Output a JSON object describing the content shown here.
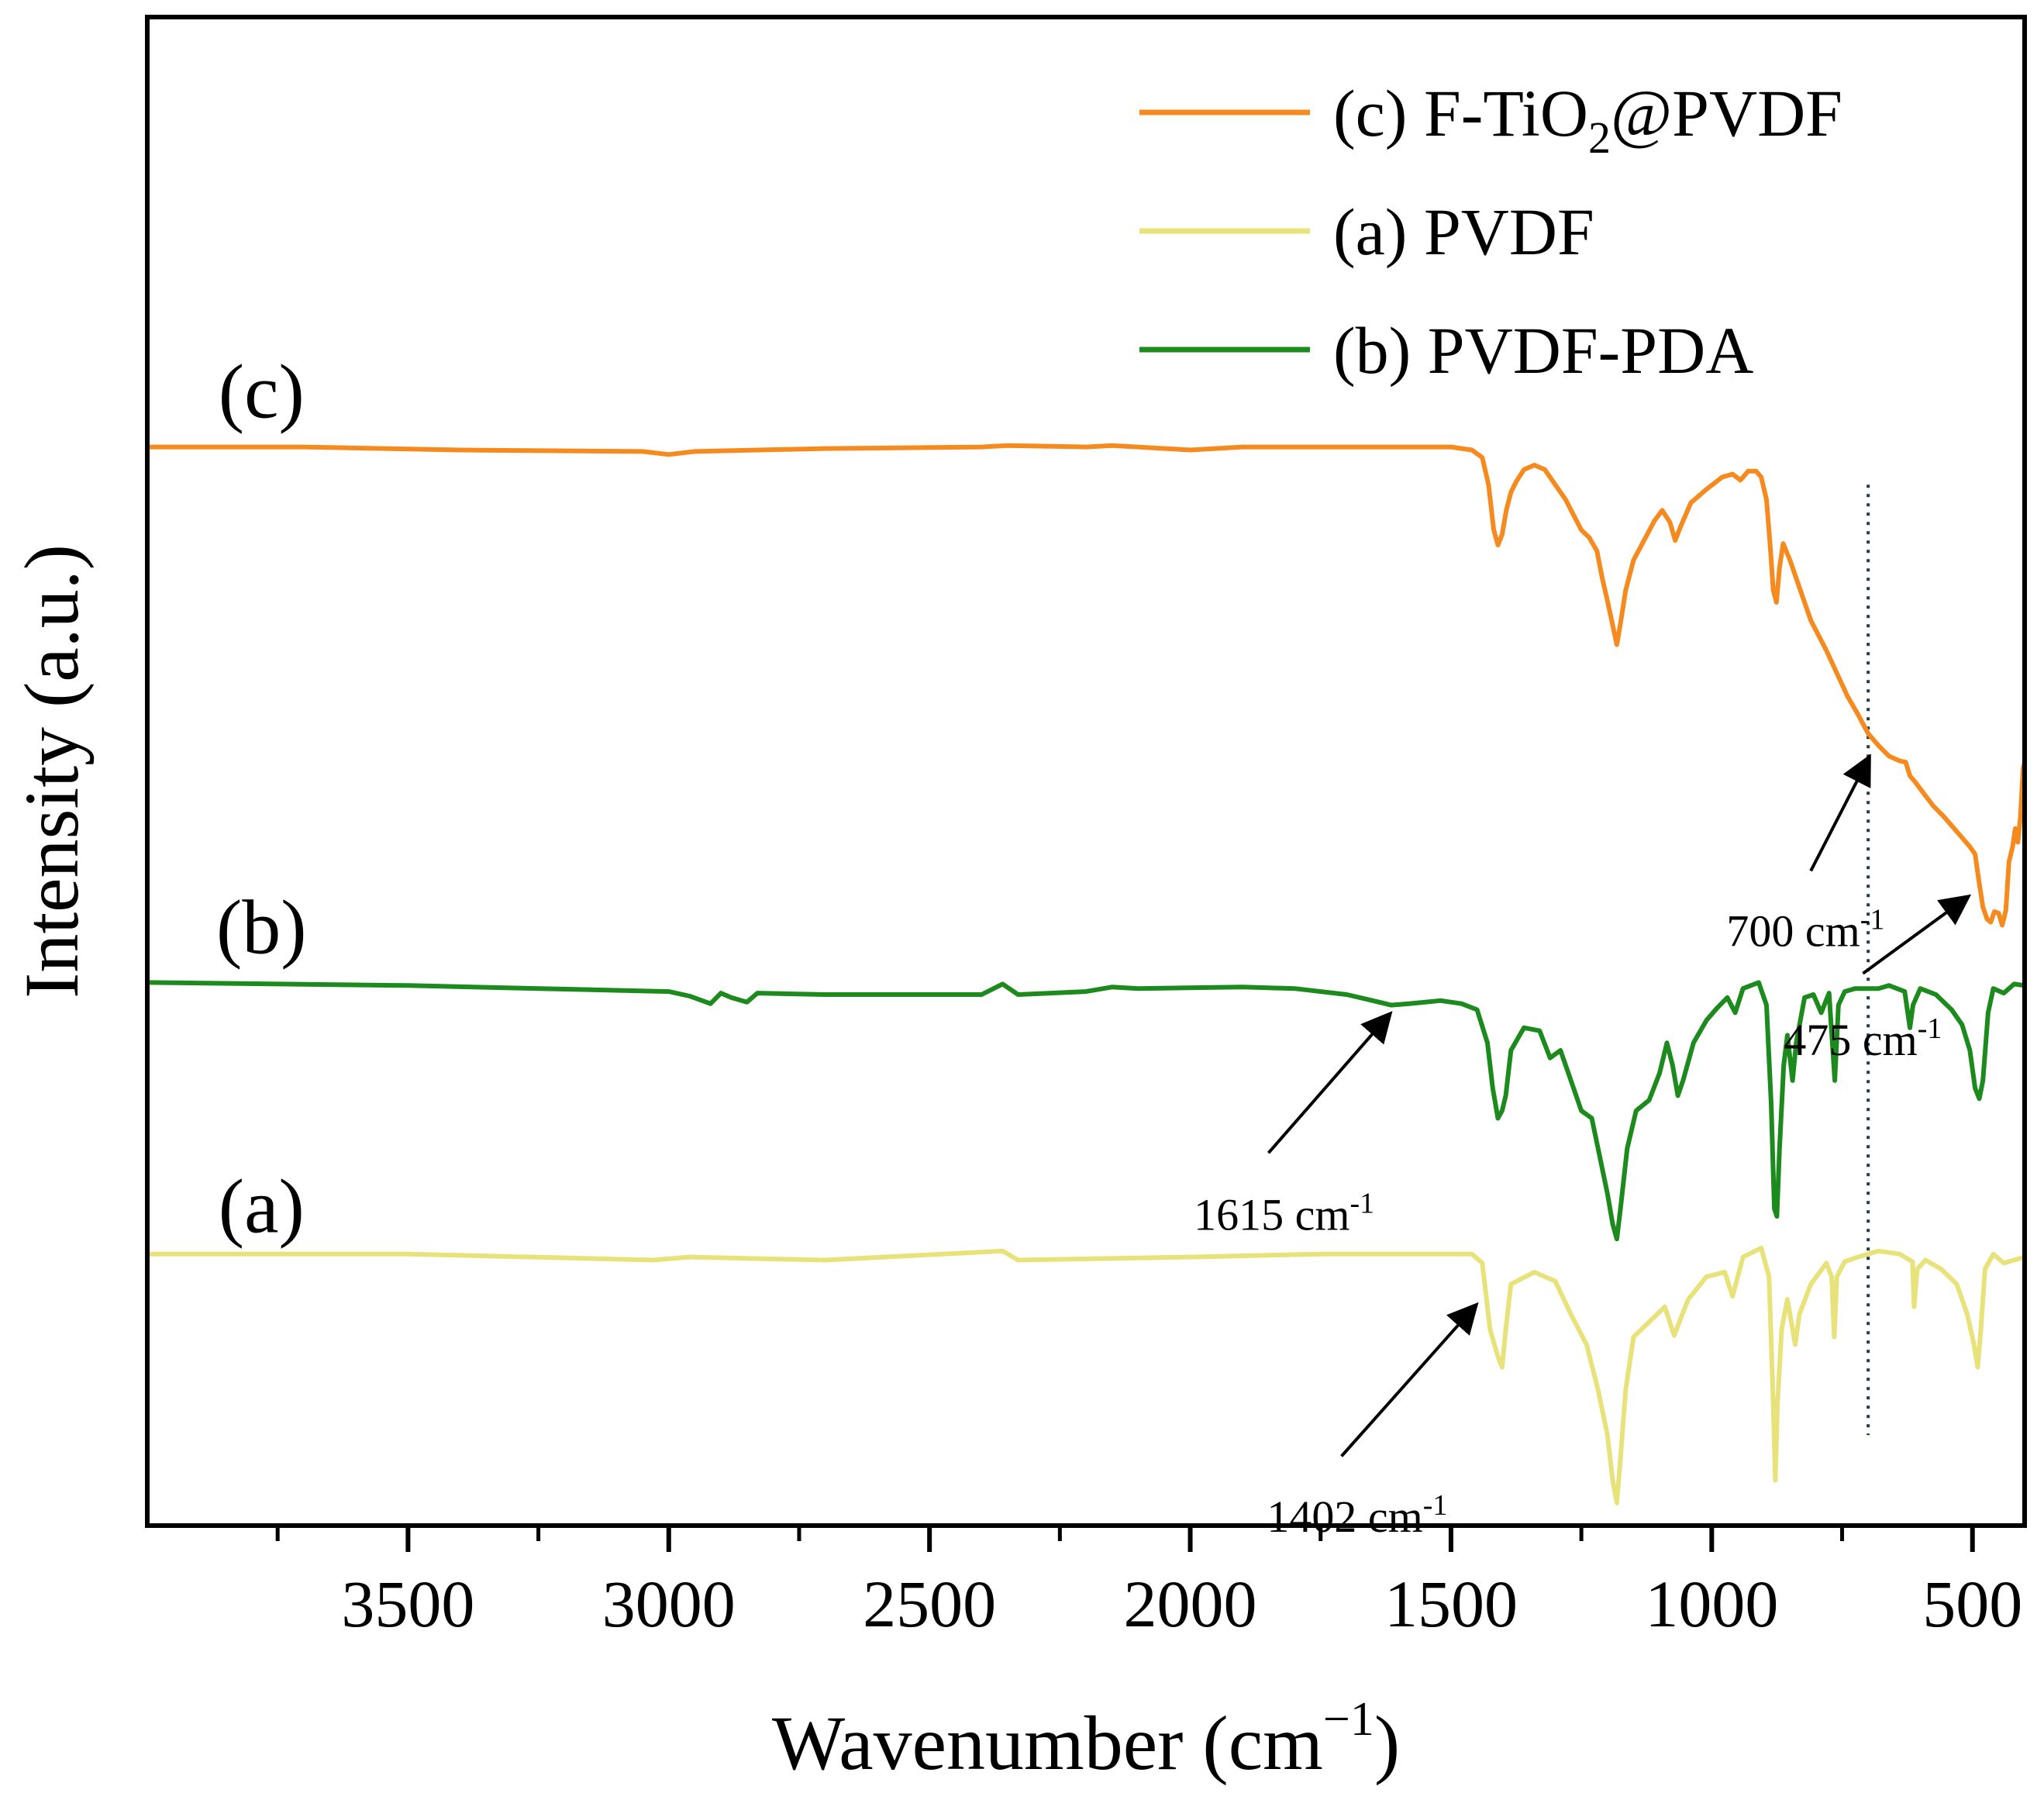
{
  "chart_data": {
    "type": "line",
    "title": "",
    "xlabel": "Wavenumber (cm",
    "xlabel_sup": "−1",
    "xlabel_close": ")",
    "ylabel": "Intensity (a.u.)",
    "xlim": [
      4000,
      400
    ],
    "x_reversed": true,
    "xticks": [
      "3500",
      "3000",
      "2500",
      "2000",
      "1500",
      "1000",
      "500"
    ],
    "xtick_values": [
      3500,
      3000,
      2500,
      2000,
      1500,
      1000,
      500
    ],
    "minor_ticks": [
      3750,
      3250,
      2750,
      2250,
      1750,
      1250,
      750
    ],
    "ylim": [
      0,
      100
    ],
    "yticks_shown": false,
    "grid": false,
    "legend_position": "top-right",
    "legend": [
      {
        "pre": "(c) F-TiO",
        "sub": "2",
        "post": "@PVDF",
        "series": 2
      },
      {
        "pre": "(a) PVDF",
        "sub": "",
        "post": "",
        "series": 0
      },
      {
        "pre": "(b) PVDF-PDA",
        "sub": "",
        "post": "",
        "series": 1
      }
    ],
    "series": [
      {
        "name": "(a) PVDF",
        "label": "(a)",
        "color": "#e8e27a",
        "label_at": [
          3900,
          21
        ],
        "points": [
          [
            4000,
            18
          ],
          [
            3500,
            18
          ],
          [
            3030,
            17.6
          ],
          [
            2960,
            17.8
          ],
          [
            2700,
            17.6
          ],
          [
            2360,
            18.2
          ],
          [
            2330,
            17.6
          ],
          [
            2000,
            17.8
          ],
          [
            1750,
            18
          ],
          [
            1460,
            18
          ],
          [
            1440,
            17.4
          ],
          [
            1425,
            13
          ],
          [
            1410,
            11.2
          ],
          [
            1402,
            10.5
          ],
          [
            1395,
            13
          ],
          [
            1385,
            16
          ],
          [
            1340,
            16.8
          ],
          [
            1300,
            16.2
          ],
          [
            1270,
            14
          ],
          [
            1240,
            12
          ],
          [
            1218,
            9
          ],
          [
            1200,
            6
          ],
          [
            1190,
            3
          ],
          [
            1182,
            1.5
          ],
          [
            1176,
            4
          ],
          [
            1165,
            9
          ],
          [
            1150,
            12.5
          ],
          [
            1120,
            13.5
          ],
          [
            1090,
            14.5
          ],
          [
            1072,
            12.6
          ],
          [
            1062,
            13.5
          ],
          [
            1045,
            15
          ],
          [
            1010,
            16.5
          ],
          [
            975,
            16.8
          ],
          [
            960,
            15.2
          ],
          [
            940,
            17.8
          ],
          [
            905,
            18.4
          ],
          [
            890,
            16.5
          ],
          [
            882,
            8
          ],
          [
            878,
            3
          ],
          [
            874,
            8
          ],
          [
            866,
            13
          ],
          [
            855,
            15
          ],
          [
            840,
            12
          ],
          [
            832,
            14
          ],
          [
            810,
            16
          ],
          [
            780,
            17.4
          ],
          [
            770,
            16.5
          ],
          [
            765,
            12.5
          ],
          [
            760,
            16.5
          ],
          [
            745,
            17.5
          ],
          [
            720,
            17.8
          ],
          [
            700,
            18
          ],
          [
            680,
            18.2
          ],
          [
            640,
            18
          ],
          [
            615,
            17.5
          ],
          [
            612,
            14.5
          ],
          [
            606,
            17
          ],
          [
            590,
            17.6
          ],
          [
            560,
            17
          ],
          [
            530,
            16
          ],
          [
            510,
            14
          ],
          [
            497,
            12
          ],
          [
            490,
            10.5
          ],
          [
            484,
            13
          ],
          [
            476,
            17
          ],
          [
            460,
            18
          ],
          [
            440,
            17.4
          ],
          [
            400,
            17.8
          ]
        ]
      },
      {
        "name": "(b) PVDF-PDA",
        "label": "(b)",
        "color": "#1c8a1c",
        "label_at": [
          3900,
          39.5
        ],
        "points": [
          [
            4000,
            36
          ],
          [
            3500,
            35.8
          ],
          [
            3000,
            35.4
          ],
          [
            2960,
            35.1
          ],
          [
            2920,
            34.6
          ],
          [
            2900,
            35.3
          ],
          [
            2880,
            35
          ],
          [
            2850,
            34.7
          ],
          [
            2830,
            35.3
          ],
          [
            2700,
            35.2
          ],
          [
            2400,
            35.2
          ],
          [
            2360,
            35.9
          ],
          [
            2330,
            35.2
          ],
          [
            2200,
            35.4
          ],
          [
            2150,
            35.7
          ],
          [
            2100,
            35.6
          ],
          [
            1900,
            35.7
          ],
          [
            1800,
            35.6
          ],
          [
            1700,
            35.2
          ],
          [
            1650,
            34.8
          ],
          [
            1615,
            34.5
          ],
          [
            1580,
            34.6
          ],
          [
            1520,
            34.8
          ],
          [
            1480,
            34.6
          ],
          [
            1450,
            34.2
          ],
          [
            1430,
            32
          ],
          [
            1420,
            29
          ],
          [
            1410,
            27
          ],
          [
            1402,
            27.5
          ],
          [
            1395,
            28.5
          ],
          [
            1385,
            31.5
          ],
          [
            1360,
            33
          ],
          [
            1330,
            32.8
          ],
          [
            1310,
            31
          ],
          [
            1290,
            31.5
          ],
          [
            1270,
            29.5
          ],
          [
            1250,
            27.5
          ],
          [
            1230,
            27
          ],
          [
            1215,
            24.5
          ],
          [
            1200,
            22
          ],
          [
            1190,
            20
          ],
          [
            1182,
            19
          ],
          [
            1175,
            21
          ],
          [
            1162,
            25
          ],
          [
            1145,
            27.5
          ],
          [
            1120,
            28.2
          ],
          [
            1100,
            30
          ],
          [
            1086,
            32
          ],
          [
            1075,
            30.5
          ],
          [
            1065,
            28.5
          ],
          [
            1055,
            29.5
          ],
          [
            1035,
            32
          ],
          [
            1010,
            33.5
          ],
          [
            990,
            34.3
          ],
          [
            970,
            35
          ],
          [
            955,
            34
          ],
          [
            940,
            35.6
          ],
          [
            910,
            36
          ],
          [
            895,
            34.5
          ],
          [
            886,
            28
          ],
          [
            880,
            21
          ],
          [
            875,
            20.5
          ],
          [
            870,
            25
          ],
          [
            862,
            30.5
          ],
          [
            855,
            32.5
          ],
          [
            845,
            29.5
          ],
          [
            838,
            32
          ],
          [
            822,
            35
          ],
          [
            805,
            35.2
          ],
          [
            790,
            34
          ],
          [
            775,
            35.3
          ],
          [
            764,
            29.5
          ],
          [
            757,
            34.5
          ],
          [
            745,
            35.4
          ],
          [
            725,
            35.6
          ],
          [
            700,
            35.6
          ],
          [
            680,
            35.6
          ],
          [
            660,
            35.8
          ],
          [
            630,
            35.4
          ],
          [
            620,
            33
          ],
          [
            614,
            34.5
          ],
          [
            600,
            35.6
          ],
          [
            570,
            35.2
          ],
          [
            540,
            34.2
          ],
          [
            520,
            33.2
          ],
          [
            505,
            31.5
          ],
          [
            495,
            29
          ],
          [
            487,
            28.3
          ],
          [
            480,
            29.5
          ],
          [
            470,
            34
          ],
          [
            460,
            35.6
          ],
          [
            440,
            35.3
          ],
          [
            420,
            35.9
          ],
          [
            400,
            35.8
          ]
        ]
      },
      {
        "name": "(c) F-TiO2@PVDF",
        "label": "(c)",
        "color": "#f58a1f",
        "label_at": [
          3900,
          75
        ],
        "points": [
          [
            4000,
            71.5
          ],
          [
            3700,
            71.5
          ],
          [
            3400,
            71.3
          ],
          [
            3050,
            71.2
          ],
          [
            3000,
            71
          ],
          [
            2950,
            71.2
          ],
          [
            2700,
            71.4
          ],
          [
            2400,
            71.5
          ],
          [
            2350,
            71.6
          ],
          [
            2200,
            71.5
          ],
          [
            2150,
            71.6
          ],
          [
            2000,
            71.3
          ],
          [
            1900,
            71.5
          ],
          [
            1700,
            71.5
          ],
          [
            1500,
            71.5
          ],
          [
            1460,
            71.3
          ],
          [
            1440,
            70.8
          ],
          [
            1428,
            69
          ],
          [
            1418,
            66
          ],
          [
            1410,
            65
          ],
          [
            1402,
            65.7
          ],
          [
            1394,
            67.3
          ],
          [
            1385,
            68.5
          ],
          [
            1375,
            69.2
          ],
          [
            1360,
            70
          ],
          [
            1340,
            70.3
          ],
          [
            1320,
            70
          ],
          [
            1300,
            69
          ],
          [
            1280,
            68
          ],
          [
            1265,
            67
          ],
          [
            1250,
            66
          ],
          [
            1235,
            65.5
          ],
          [
            1220,
            64.6
          ],
          [
            1210,
            62.8
          ],
          [
            1200,
            61.3
          ],
          [
            1190,
            59.7
          ],
          [
            1182,
            58.4
          ],
          [
            1175,
            59.8
          ],
          [
            1165,
            62
          ],
          [
            1150,
            64
          ],
          [
            1130,
            65.3
          ],
          [
            1110,
            66.6
          ],
          [
            1095,
            67.3
          ],
          [
            1080,
            66.5
          ],
          [
            1070,
            65.3
          ],
          [
            1060,
            66.2
          ],
          [
            1040,
            67.8
          ],
          [
            1010,
            68.7
          ],
          [
            980,
            69.5
          ],
          [
            960,
            69.7
          ],
          [
            945,
            69.3
          ],
          [
            930,
            69.9
          ],
          [
            915,
            69.9
          ],
          [
            905,
            69.5
          ],
          [
            895,
            68
          ],
          [
            888,
            65
          ],
          [
            882,
            62
          ],
          [
            876,
            61.2
          ],
          [
            870,
            63.5
          ],
          [
            863,
            65.1
          ],
          [
            850,
            64
          ],
          [
            830,
            62
          ],
          [
            810,
            60
          ],
          [
            780,
            58
          ],
          [
            760,
            56.5
          ],
          [
            740,
            55
          ],
          [
            720,
            53.8
          ],
          [
            700,
            52.5
          ],
          [
            680,
            51.7
          ],
          [
            660,
            51
          ],
          [
            640,
            50.7
          ],
          [
            628,
            50.6
          ],
          [
            620,
            49.7
          ],
          [
            610,
            49.3
          ],
          [
            595,
            48.6
          ],
          [
            575,
            47.7
          ],
          [
            555,
            47
          ],
          [
            535,
            46.2
          ],
          [
            520,
            45.6
          ],
          [
            505,
            45
          ],
          [
            495,
            44.5
          ],
          [
            488,
            42.8
          ],
          [
            480,
            41
          ],
          [
            472,
            40.2
          ],
          [
            465,
            40
          ],
          [
            458,
            40.7
          ],
          [
            450,
            40.6
          ],
          [
            443,
            39.8
          ],
          [
            436,
            40.8
          ],
          [
            430,
            44
          ],
          [
            423,
            45
          ],
          [
            418,
            46.2
          ],
          [
            413,
            45.3
          ],
          [
            408,
            47
          ],
          [
            403,
            50.2
          ],
          [
            400,
            50.6
          ]
        ]
      }
    ],
    "annotations": [
      {
        "text": "1402 cm",
        "sup": "-1",
        "tail": [
          1710,
          4.6
        ],
        "head": [
          1455,
          14.5
        ],
        "text_at": [
          1680,
          -0.4
        ]
      },
      {
        "text": "1615 cm",
        "sup": "-1",
        "tail": [
          1850,
          24.7
        ],
        "head": [
          1620,
          33.8
        ],
        "text_at": [
          1820,
          19.6
        ]
      },
      {
        "text": "700 cm",
        "sup": "-1",
        "tail": [
          810,
          43.4
        ],
        "head": [
          700,
          50.8
        ],
        "text_at": [
          820,
          38.4
        ]
      },
      {
        "text": "475 cm",
        "sup": "-1",
        "tail": [
          710,
          36.6
        ],
        "head": [
          512,
          41.6
        ],
        "text_at": [
          710,
          31.2
        ]
      }
    ],
    "reference_line": {
      "x": 700,
      "y_from": 6,
      "y_to": 69,
      "style": "dotted",
      "color": "#1f3a4d"
    }
  }
}
